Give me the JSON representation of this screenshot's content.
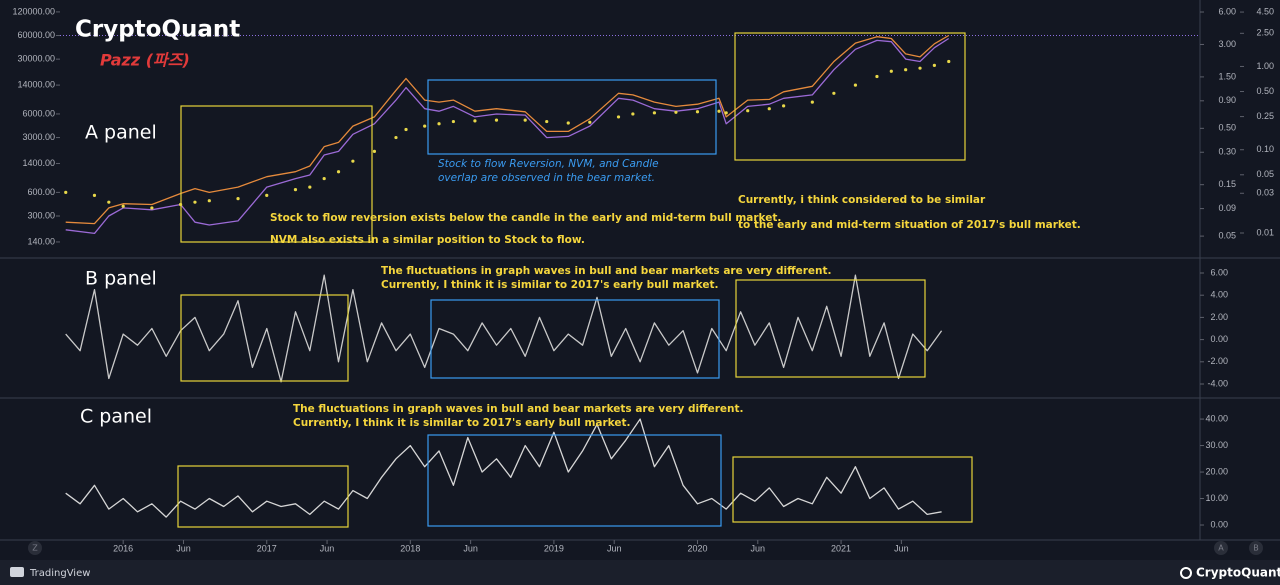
{
  "header": {
    "brand": "CryptoQuant",
    "author": "Pazz (파즈)"
  },
  "footer": {
    "left": "TradingView",
    "right": "CryptoQuant",
    "buttons": [
      "Z",
      "A",
      "B"
    ]
  },
  "chart_data": [
    {
      "type": "line",
      "title": "A panel",
      "log_scale": true,
      "annotations": [
        "Stock to flow Reversion, NVM, and Candle",
        "overlap are observed in the bear market.",
        "Stock to flow reversion exists below the candle in the early and mid-term bull market.",
        "NVM also exists in a similar position to Stock to flow.",
        "Currently, i think considered to be similar",
        "to the early and mid-term situation of 2017's bull market."
      ],
      "xlim": [
        2015.56,
        2023.5
      ],
      "ylim": [
        90,
        147000
      ],
      "yticks": [
        {
          "value": 120000,
          "label": "120000.00"
        },
        {
          "value": 60000,
          "label": "60000.00"
        },
        {
          "value": 30000,
          "label": "30000.00"
        },
        {
          "value": 14000,
          "label": "14000.00"
        },
        {
          "value": 6000,
          "label": "6000.00"
        },
        {
          "value": 3000,
          "label": "3000.00"
        },
        {
          "value": 1400,
          "label": "1400.00"
        },
        {
          "value": 600,
          "label": "600.00"
        },
        {
          "value": 300,
          "label": "300.00"
        },
        {
          "value": 140,
          "label": "140.00"
        }
      ],
      "y2lim": [
        0.032,
        6.97
      ],
      "y2ticks": [
        {
          "value": 6,
          "label": "6.00"
        },
        {
          "value": 3,
          "label": "3.00"
        },
        {
          "value": 1.5,
          "label": "1.50"
        },
        {
          "value": 0.9,
          "label": "0.90"
        },
        {
          "value": 0.5,
          "label": "0.50"
        },
        {
          "value": 0.3,
          "label": "0.30"
        },
        {
          "value": 0.15,
          "label": "0.15"
        },
        {
          "value": 0.09,
          "label": "0.09"
        },
        {
          "value": 0.05,
          "label": "0.05"
        }
      ],
      "y3lim": [
        0.00515,
        5.47
      ],
      "y3ticks": [
        {
          "value": 4.5,
          "label": "4.50"
        },
        {
          "value": 2.5,
          "label": "2.50"
        },
        {
          "value": 1,
          "label": "1.00"
        },
        {
          "value": 0.5,
          "label": "0.50"
        },
        {
          "value": 0.25,
          "label": "0.25"
        },
        {
          "value": 0.1,
          "label": "0.10"
        },
        {
          "value": 0.05,
          "label": "0.05"
        },
        {
          "value": 0.03,
          "label": "0.03"
        },
        {
          "value": 0.01,
          "label": "0.01"
        }
      ],
      "hline": 60000,
      "hline_color": "#8c6fe0",
      "x": [
        2015.6,
        2015.8,
        2015.9,
        2016.0,
        2016.2,
        2016.4,
        2016.5,
        2016.6,
        2016.8,
        2017.0,
        2017.2,
        2017.3,
        2017.4,
        2017.5,
        2017.6,
        2017.75,
        2017.9,
        2017.97,
        2018.1,
        2018.2,
        2018.3,
        2018.45,
        2018.6,
        2018.8,
        2018.95,
        2019.1,
        2019.25,
        2019.45,
        2019.55,
        2019.7,
        2019.85,
        2020.0,
        2020.15,
        2020.2,
        2020.35,
        2020.5,
        2020.6,
        2020.8,
        2020.95,
        2021.1,
        2021.25,
        2021.35,
        2021.45,
        2021.55,
        2021.65,
        2021.75
      ],
      "series": [
        {
          "color": "#e58a3c",
          "style": "line",
          "values": [
            250,
            240,
            380,
            430,
            420,
            580,
            670,
            600,
            700,
            950,
            1100,
            1300,
            2300,
            2600,
            4200,
            5500,
            12000,
            17000,
            9000,
            8500,
            9000,
            6500,
            7000,
            6400,
            3600,
            3600,
            5200,
            11000,
            10500,
            8500,
            7500,
            8000,
            9500,
            5500,
            9000,
            9200,
            11500,
            13500,
            28000,
            48000,
            58000,
            55000,
            35000,
            32000,
            47000,
            60000
          ]
        },
        {
          "color": "#9b6ad6",
          "style": "line",
          "values": [
            200,
            180,
            300,
            380,
            360,
            420,
            250,
            230,
            260,
            700,
            900,
            1000,
            1800,
            2000,
            3300,
            4500,
            9000,
            13000,
            7000,
            6500,
            7500,
            5500,
            6000,
            5800,
            3000,
            3100,
            4200,
            9500,
            9000,
            7000,
            6500,
            7000,
            8500,
            4500,
            7500,
            8000,
            9500,
            10500,
            22000,
            40000,
            52000,
            50000,
            30000,
            28000,
            42000,
            55000
          ]
        },
        {
          "color": "#e8d84a",
          "style": "dots",
          "values": [
            600,
            550,
            450,
            400,
            380,
            420,
            450,
            470,
            500,
            550,
            650,
            700,
            900,
            1100,
            1500,
            2000,
            3000,
            3800,
            4200,
            4500,
            4800,
            4900,
            5000,
            5000,
            4800,
            4600,
            4700,
            5500,
            6000,
            6200,
            6300,
            6400,
            6500,
            6200,
            6600,
            7000,
            7600,
            8500,
            11000,
            14000,
            18000,
            21000,
            22000,
            23000,
            25000,
            28000
          ]
        }
      ]
    },
    {
      "type": "line",
      "title": "B panel",
      "annotations": [
        "The fluctuations in graph waves in bull and bear markets are very different.",
        "Currently, I think it is similar to 2017's early bull market."
      ],
      "xlim": [
        2015.56,
        2023.5
      ],
      "ylim": [
        -5.17,
        7.17
      ],
      "yticks": [
        {
          "value": 6,
          "label": "6.00"
        },
        {
          "value": 4,
          "label": "4.00"
        },
        {
          "value": 2,
          "label": "2.00"
        },
        {
          "value": 0,
          "label": "0.00"
        },
        {
          "value": -2,
          "label": "-2.00"
        },
        {
          "value": -4,
          "label": "-4.00"
        }
      ],
      "x": [
        2015.6,
        2015.7,
        2015.8,
        2015.9,
        2016.0,
        2016.1,
        2016.2,
        2016.3,
        2016.4,
        2016.5,
        2016.6,
        2016.7,
        2016.8,
        2016.9,
        2017.0,
        2017.1,
        2017.2,
        2017.3,
        2017.4,
        2017.5,
        2017.6,
        2017.7,
        2017.8,
        2017.9,
        2018.0,
        2018.1,
        2018.2,
        2018.3,
        2018.4,
        2018.5,
        2018.6,
        2018.7,
        2018.8,
        2018.9,
        2019.0,
        2019.1,
        2019.2,
        2019.3,
        2019.4,
        2019.5,
        2019.6,
        2019.7,
        2019.8,
        2019.9,
        2020.0,
        2020.1,
        2020.2,
        2020.3,
        2020.4,
        2020.5,
        2020.6,
        2020.7,
        2020.8,
        2020.9,
        2021.0,
        2021.1,
        2021.2,
        2021.3,
        2021.4,
        2021.5,
        2021.6,
        2021.7
      ],
      "series": [
        {
          "color": "#c9c9c9",
          "style": "line",
          "values": [
            0.5,
            -1,
            4.5,
            -3.5,
            0.5,
            -0.5,
            1,
            -1.5,
            0.8,
            2,
            -1,
            0.5,
            3.5,
            -2.5,
            1,
            -3.8,
            2.5,
            -1,
            5.8,
            -2,
            4.5,
            -2,
            1.5,
            -1,
            0.5,
            -2.5,
            1,
            0.5,
            -1,
            1.5,
            -0.5,
            1,
            -1.5,
            2,
            -1,
            0.5,
            -0.5,
            3.8,
            -1.5,
            1,
            -2,
            1.5,
            -0.5,
            0.8,
            -3,
            1,
            -1,
            2.5,
            -0.5,
            1.5,
            -2.5,
            2,
            -1,
            3,
            -1.5,
            5.8,
            -1.5,
            1.5,
            -3.5,
            0.5,
            -1,
            0.8
          ]
        }
      ]
    },
    {
      "type": "line",
      "title": "C panel",
      "annotations": [
        "The fluctuations in graph waves in bull and bear markets are very different.",
        "Currently, I think it is similar to 2017's early bull market."
      ],
      "xlim": [
        2015.56,
        2023.5
      ],
      "xticks": [
        2016,
        {
          "value": 2016.42,
          "label": "Jun"
        },
        2017,
        {
          "value": 2017.42,
          "label": "Jun"
        },
        2018,
        {
          "value": 2018.42,
          "label": "Jun"
        },
        2019,
        {
          "value": 2019.42,
          "label": "Jun"
        },
        2020,
        {
          "value": 2020.42,
          "label": "Jun"
        },
        2021,
        {
          "value": 2021.42,
          "label": "Jun"
        }
      ],
      "ylim": [
        -3.77,
        47.2
      ],
      "yticks": [
        {
          "value": 40,
          "label": "40.00"
        },
        {
          "value": 30,
          "label": "30.00"
        },
        {
          "value": 20,
          "label": "20.00"
        },
        {
          "value": 10,
          "label": "10.00"
        },
        {
          "value": 0,
          "label": "0.00"
        }
      ],
      "x": [
        2015.6,
        2015.7,
        2015.8,
        2015.9,
        2016.0,
        2016.1,
        2016.2,
        2016.3,
        2016.4,
        2016.5,
        2016.6,
        2016.7,
        2016.8,
        2016.9,
        2017.0,
        2017.1,
        2017.2,
        2017.3,
        2017.4,
        2017.5,
        2017.6,
        2017.7,
        2017.8,
        2017.9,
        2018.0,
        2018.1,
        2018.2,
        2018.3,
        2018.4,
        2018.5,
        2018.6,
        2018.7,
        2018.8,
        2018.9,
        2019.0,
        2019.1,
        2019.2,
        2019.3,
        2019.4,
        2019.5,
        2019.6,
        2019.7,
        2019.8,
        2019.9,
        2020.0,
        2020.1,
        2020.2,
        2020.3,
        2020.4,
        2020.5,
        2020.6,
        2020.7,
        2020.8,
        2020.9,
        2021.0,
        2021.1,
        2021.2,
        2021.3,
        2021.4,
        2021.5,
        2021.6,
        2021.7
      ],
      "series": [
        {
          "color": "#d6d6d6",
          "style": "line",
          "values": [
            12,
            8,
            15,
            6,
            10,
            5,
            8,
            3,
            9,
            6,
            10,
            7,
            11,
            5,
            9,
            7,
            8,
            4,
            9,
            6,
            13,
            10,
            18,
            25,
            30,
            22,
            28,
            15,
            33,
            20,
            25,
            18,
            30,
            22,
            35,
            20,
            28,
            38,
            25,
            32,
            40,
            22,
            30,
            15,
            8,
            10,
            6,
            12,
            9,
            14,
            7,
            10,
            8,
            18,
            12,
            22,
            10,
            14,
            6,
            9,
            4,
            5
          ]
        }
      ]
    }
  ]
}
